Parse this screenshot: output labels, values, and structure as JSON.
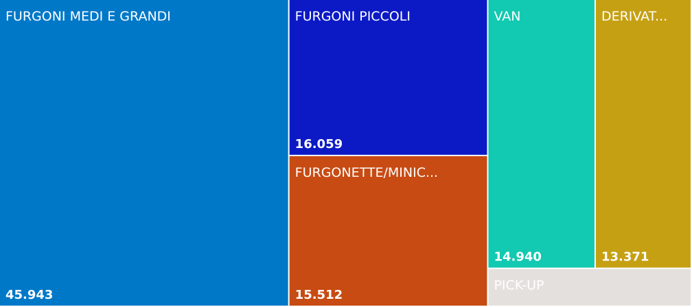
{
  "chart_data": {
    "type": "treemap",
    "categories": [
      "FURGONI MEDI E GRANDI",
      "FURGONI PICCOLI",
      "FURGONETTE/MINIC...",
      "VAN",
      "DERIVAT...",
      "PICK-UP"
    ],
    "values": [
      45943,
      16059,
      15512,
      14940,
      13371,
      4000
    ],
    "value_labels": [
      "45.943",
      "16.059",
      "15.512",
      "14.940",
      "13.371",
      null
    ],
    "colors": [
      "#0078c8",
      "#0c1ac6",
      "#c74b13",
      "#12c9b1",
      "#c6a013",
      "#e4e0dd"
    ]
  }
}
